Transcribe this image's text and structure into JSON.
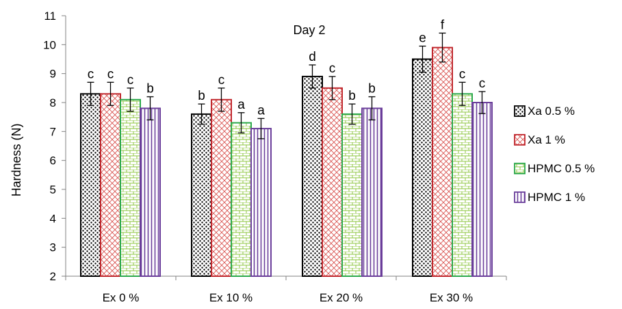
{
  "chart_data": {
    "type": "bar",
    "title": "Day 2",
    "xlabel": "",
    "ylabel": "Hardness  (N)",
    "ylim": [
      2,
      11
    ],
    "yticks": [
      2,
      3,
      4,
      5,
      6,
      7,
      8,
      9,
      10,
      11
    ],
    "categories": [
      "Ex 0 %",
      "Ex 10 %",
      "Ex 20 %",
      "Ex 30 %"
    ],
    "grid": false,
    "legend_position": "right",
    "series": [
      {
        "name": "Xa 0.5 %",
        "pattern": "dots",
        "color": "#000000",
        "values": [
          8.3,
          7.6,
          8.9,
          9.5
        ],
        "errors": [
          0.4,
          0.35,
          0.4,
          0.45
        ],
        "letters": [
          "c",
          "b",
          "d",
          "e"
        ]
      },
      {
        "name": "Xa 1 %",
        "pattern": "crosshatch",
        "color": "#c0272d",
        "values": [
          8.3,
          8.1,
          8.5,
          9.9
        ],
        "errors": [
          0.4,
          0.4,
          0.4,
          0.5
        ],
        "letters": [
          "c",
          "c",
          "c",
          "f"
        ]
      },
      {
        "name": "HPMC 0.5 %",
        "pattern": "brick",
        "color": "#2aa84a",
        "values": [
          8.1,
          7.3,
          7.6,
          8.3
        ],
        "errors": [
          0.4,
          0.35,
          0.35,
          0.4
        ],
        "letters": [
          "c",
          "a",
          "b",
          "c"
        ]
      },
      {
        "name": "HPMC 1 %",
        "pattern": "vlines",
        "color": "#6a3d9a",
        "values": [
          7.8,
          7.1,
          7.8,
          8.0
        ],
        "errors": [
          0.4,
          0.35,
          0.4,
          0.38
        ],
        "letters": [
          "b",
          "a",
          "b",
          "c"
        ]
      }
    ]
  }
}
